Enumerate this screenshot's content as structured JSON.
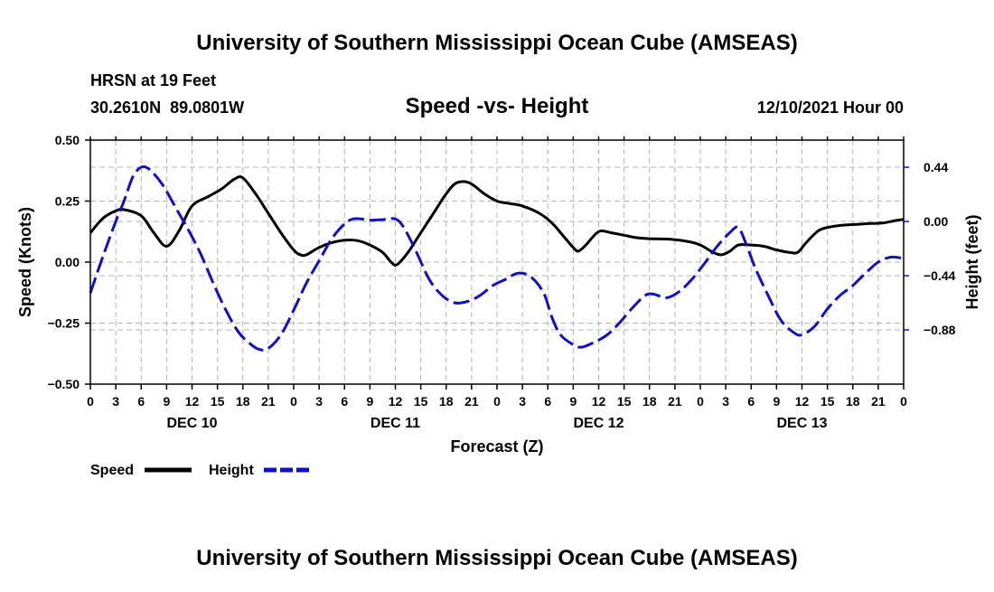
{
  "page": {
    "main_title": "University of Southern Mississippi Ocean Cube (AMSEAS)",
    "footer_title": "University of Southern Mississippi Ocean Cube (AMSEAS)",
    "station_line": "HRSN at 19 Feet",
    "coords_line": "30.2610N  89.0801W",
    "date_line": "12/10/2021 Hour 00"
  },
  "chart_data": {
    "type": "line",
    "title": "Speed -vs- Height",
    "xlabel": "Forecast (Z)",
    "ylabel_left": "Speed (Knots)",
    "ylabel_right": "Height (feet)",
    "x_range_hours": [
      0,
      96
    ],
    "x_tick_labels": [
      "0",
      "3",
      "6",
      "9",
      "12",
      "15",
      "18",
      "21",
      "0",
      "3",
      "6",
      "9",
      "12",
      "15",
      "18",
      "21",
      "0",
      "3",
      "6",
      "9",
      "12",
      "15",
      "18",
      "21",
      "0",
      "3",
      "6",
      "9",
      "12",
      "15",
      "18",
      "21",
      "0"
    ],
    "day_labels": [
      {
        "label": "DEC 10",
        "hour": 12
      },
      {
        "label": "DEC 11",
        "hour": 36
      },
      {
        "label": "DEC 12",
        "hour": 60
      },
      {
        "label": "DEC 13",
        "hour": 84
      }
    ],
    "left_axis": {
      "ylim": [
        -0.5,
        0.5
      ],
      "ticks": [
        -0.5,
        -0.25,
        0.0,
        0.25,
        0.5
      ],
      "tick_labels": [
        "−0.50",
        "−0.25",
        "0.00",
        "0.25",
        "0.50"
      ]
    },
    "right_axis": {
      "ylim": [
        -1.32,
        0.66
      ],
      "ticks": [
        0.44,
        0.0,
        -0.44,
        -0.88
      ],
      "tick_labels": [
        "0.44",
        "0.00",
        "−0.44",
        "−0.88"
      ]
    },
    "grid": true,
    "legend_position": "bottom-left",
    "series": [
      {
        "name": "Speed",
        "axis": "left",
        "color": "#000000",
        "dash": "solid",
        "points": [
          [
            0,
            0.12
          ],
          [
            1.5,
            0.18
          ],
          [
            3,
            0.21
          ],
          [
            4,
            0.215
          ],
          [
            6,
            0.19
          ],
          [
            7.5,
            0.12
          ],
          [
            9,
            0.065
          ],
          [
            10.5,
            0.13
          ],
          [
            12,
            0.23
          ],
          [
            14,
            0.27
          ],
          [
            15.5,
            0.3
          ],
          [
            17,
            0.34
          ],
          [
            18,
            0.345
          ],
          [
            19.5,
            0.28
          ],
          [
            21,
            0.2
          ],
          [
            22.5,
            0.12
          ],
          [
            24,
            0.05
          ],
          [
            24.8,
            0.03
          ],
          [
            25.5,
            0.03
          ],
          [
            27,
            0.06
          ],
          [
            28.5,
            0.08
          ],
          [
            30,
            0.09
          ],
          [
            31.5,
            0.088
          ],
          [
            33,
            0.07
          ],
          [
            34.5,
            0.04
          ],
          [
            35.5,
            0.0
          ],
          [
            36.2,
            -0.01
          ],
          [
            37.5,
            0.04
          ],
          [
            39,
            0.12
          ],
          [
            40.5,
            0.2
          ],
          [
            42,
            0.28
          ],
          [
            43,
            0.32
          ],
          [
            44,
            0.33
          ],
          [
            45,
            0.32
          ],
          [
            46.5,
            0.28
          ],
          [
            48,
            0.25
          ],
          [
            49.5,
            0.24
          ],
          [
            51,
            0.23
          ],
          [
            53,
            0.2
          ],
          [
            54.5,
            0.16
          ],
          [
            56,
            0.1
          ],
          [
            57,
            0.06
          ],
          [
            57.6,
            0.045
          ],
          [
            58.5,
            0.07
          ],
          [
            60,
            0.125
          ],
          [
            61.5,
            0.12
          ],
          [
            63,
            0.11
          ],
          [
            64.5,
            0.1
          ],
          [
            66,
            0.096
          ],
          [
            67.5,
            0.095
          ],
          [
            69,
            0.092
          ],
          [
            70.5,
            0.085
          ],
          [
            72,
            0.07
          ],
          [
            73.5,
            0.04
          ],
          [
            74.5,
            0.03
          ],
          [
            75.5,
            0.045
          ],
          [
            76.5,
            0.07
          ],
          [
            78,
            0.07
          ],
          [
            79.5,
            0.065
          ],
          [
            81,
            0.05
          ],
          [
            82.5,
            0.04
          ],
          [
            83.5,
            0.04
          ],
          [
            84.5,
            0.08
          ],
          [
            86,
            0.13
          ],
          [
            87.5,
            0.145
          ],
          [
            89,
            0.152
          ],
          [
            90.5,
            0.155
          ],
          [
            92,
            0.158
          ],
          [
            93.5,
            0.16
          ],
          [
            95,
            0.17
          ],
          [
            96,
            0.175
          ]
        ]
      },
      {
        "name": "Height",
        "axis": "right",
        "color": "#1010c8",
        "dash": "dashed",
        "points": [
          [
            0,
            -0.58
          ],
          [
            1.5,
            -0.28
          ],
          [
            3,
            0.0
          ],
          [
            4,
            0.17
          ],
          [
            5,
            0.36
          ],
          [
            6,
            0.44
          ],
          [
            7,
            0.42
          ],
          [
            8.5,
            0.3
          ],
          [
            10,
            0.12
          ],
          [
            11.5,
            -0.06
          ],
          [
            13,
            -0.26
          ],
          [
            14.5,
            -0.5
          ],
          [
            16,
            -0.72
          ],
          [
            17.5,
            -0.9
          ],
          [
            19,
            -1.0
          ],
          [
            20,
            -1.04
          ],
          [
            21,
            -1.03
          ],
          [
            22.5,
            -0.92
          ],
          [
            24,
            -0.72
          ],
          [
            25.5,
            -0.5
          ],
          [
            27,
            -0.32
          ],
          [
            28.5,
            -0.14
          ],
          [
            30,
            -0.02
          ],
          [
            31,
            0.02
          ],
          [
            32,
            0.02
          ],
          [
            33,
            0.01
          ],
          [
            34.5,
            0.015
          ],
          [
            36,
            0.02
          ],
          [
            37,
            -0.05
          ],
          [
            38.5,
            -0.25
          ],
          [
            40,
            -0.47
          ],
          [
            41.5,
            -0.6
          ],
          [
            43,
            -0.66
          ],
          [
            44.5,
            -0.65
          ],
          [
            46,
            -0.6
          ],
          [
            47.5,
            -0.52
          ],
          [
            49,
            -0.47
          ],
          [
            50.5,
            -0.42
          ],
          [
            52,
            -0.45
          ],
          [
            53.5,
            -0.58
          ],
          [
            54.5,
            -0.78
          ],
          [
            55.5,
            -0.92
          ],
          [
            57,
            -1.0
          ],
          [
            58,
            -1.02
          ],
          [
            59.5,
            -0.98
          ],
          [
            61,
            -0.92
          ],
          [
            62.5,
            -0.82
          ],
          [
            64,
            -0.7
          ],
          [
            65.5,
            -0.6
          ],
          [
            66.5,
            -0.59
          ],
          [
            68,
            -0.62
          ],
          [
            69.5,
            -0.57
          ],
          [
            71,
            -0.47
          ],
          [
            72.5,
            -0.34
          ],
          [
            74,
            -0.2
          ],
          [
            75.5,
            -0.09
          ],
          [
            76.5,
            -0.05
          ],
          [
            77.5,
            -0.2
          ],
          [
            78.5,
            -0.38
          ],
          [
            80,
            -0.6
          ],
          [
            81.5,
            -0.8
          ],
          [
            83,
            -0.9
          ],
          [
            84,
            -0.92
          ],
          [
            85.5,
            -0.85
          ],
          [
            87,
            -0.71
          ],
          [
            88.5,
            -0.6
          ],
          [
            90,
            -0.52
          ],
          [
            91.5,
            -0.42
          ],
          [
            93,
            -0.33
          ],
          [
            94.5,
            -0.29
          ],
          [
            96,
            -0.3
          ]
        ]
      }
    ]
  },
  "legend": {
    "speed_label": "Speed",
    "height_label": "Height"
  }
}
